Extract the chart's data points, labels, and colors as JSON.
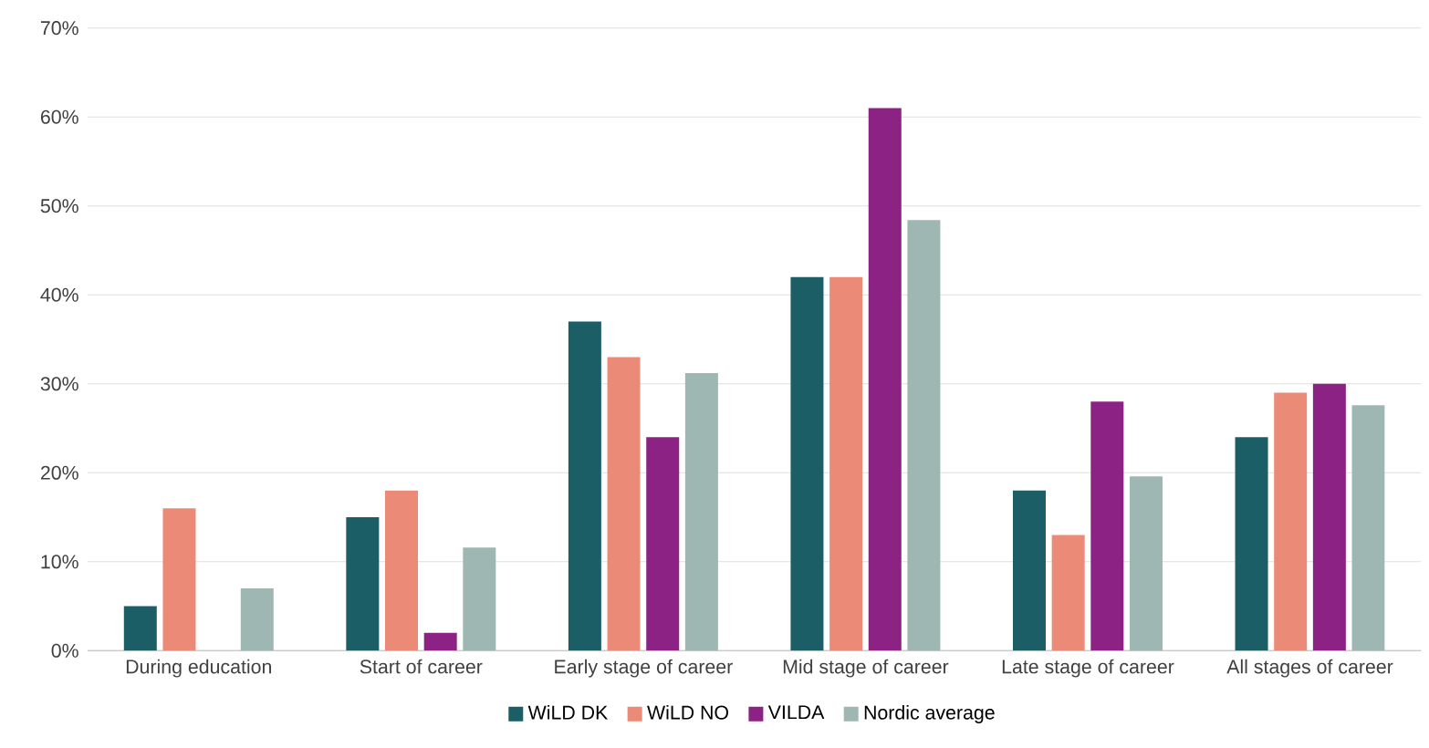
{
  "chart_data": {
    "type": "bar",
    "categories": [
      "During education",
      "Start of career",
      "Early stage of career",
      "Mid stage of career",
      "Late stage of career",
      "All stages of career"
    ],
    "series": [
      {
        "name": "WiLD DK",
        "color": "#1b5e66",
        "values": [
          5,
          15,
          37,
          42,
          18,
          24
        ]
      },
      {
        "name": "WiLD NO",
        "color": "#ec8a78",
        "values": [
          16,
          18,
          33,
          42,
          13,
          29
        ]
      },
      {
        "name": "VILDA",
        "color": "#8b2284",
        "values": [
          0,
          2,
          24,
          61,
          28,
          30
        ]
      },
      {
        "name": "Nordic average",
        "color": "#9fb7b3",
        "values": [
          7,
          11.6,
          31.2,
          48.4,
          19.6,
          27.6
        ]
      }
    ],
    "ylim": [
      0,
      70
    ],
    "yticks": [
      {
        "value": 0,
        "label": "0%"
      },
      {
        "value": 10,
        "label": "10%"
      },
      {
        "value": 20,
        "label": "20%"
      },
      {
        "value": 30,
        "label": "30%"
      },
      {
        "value": 40,
        "label": "40%"
      },
      {
        "value": 50,
        "label": "50%"
      },
      {
        "value": 60,
        "label": "60%"
      },
      {
        "value": 70,
        "label": "70%"
      }
    ],
    "grid": "y",
    "legend": "bottom"
  }
}
